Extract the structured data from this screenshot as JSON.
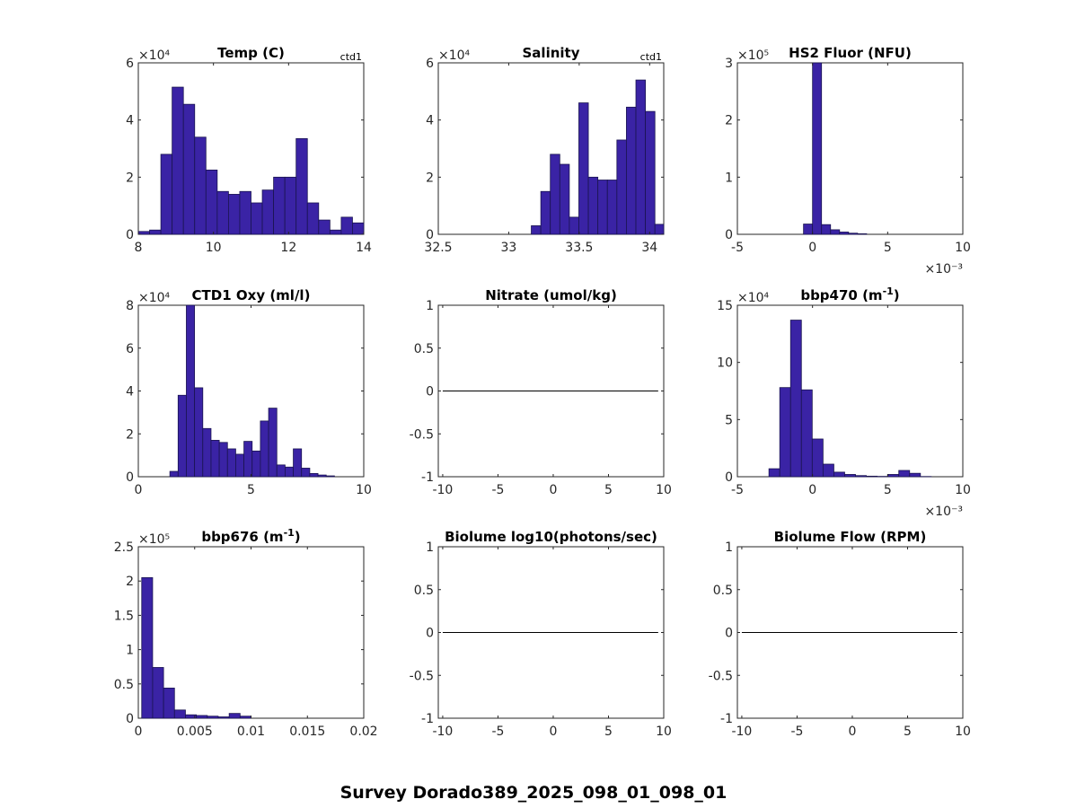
{
  "figure_title": "Survey Dorado389_2025_098_01_098_01",
  "colors": {
    "bar_fill": "#3a23a5",
    "bar_edge": "#1a1450",
    "axis": "#262626",
    "line": "#000000"
  },
  "chart_data": [
    {
      "type": "bar",
      "title": "Temp (C)",
      "tag": "ctd1",
      "multiplier": "×10⁴",
      "multiplier_value": 10000,
      "xlim": [
        8,
        14
      ],
      "ylim": [
        0,
        6
      ],
      "xticks": [
        "8",
        "10",
        "12",
        "14"
      ],
      "xtick_values": [
        8,
        10,
        12,
        14
      ],
      "yticks": [
        "0",
        "2",
        "4",
        "6"
      ],
      "ytick_values": [
        0,
        2,
        4,
        6
      ],
      "bin_start": 8,
      "bin_width": 0.3,
      "values": [
        0.1,
        0.15,
        2.8,
        5.15,
        4.55,
        3.4,
        2.25,
        1.5,
        1.4,
        1.5,
        1.1,
        1.55,
        2.0,
        2.0,
        3.35,
        1.1,
        0.5,
        0.15,
        0.6,
        0.4
      ]
    },
    {
      "type": "bar",
      "title": "Salinity",
      "tag": "ctd1",
      "multiplier": "×10⁴",
      "multiplier_value": 10000,
      "xlim": [
        32.5,
        34.1
      ],
      "ylim": [
        0,
        6
      ],
      "xticks": [
        "32.5",
        "33",
        "33.5",
        "34"
      ],
      "xtick_values": [
        32.5,
        33,
        33.5,
        34
      ],
      "yticks": [
        "0",
        "2",
        "4",
        "6"
      ],
      "ytick_values": [
        0,
        2,
        4,
        6
      ],
      "bin_start": 33.16,
      "bin_width": 0.0675,
      "values": [
        0.3,
        1.5,
        2.8,
        2.45,
        0.6,
        4.6,
        2.0,
        1.9,
        1.9,
        3.3,
        4.45,
        5.4,
        4.3,
        0.35
      ]
    },
    {
      "type": "bar",
      "title": "HS2 Fluor (NFU)",
      "tag": "",
      "multiplier": "×10⁵",
      "multiplier_value": 100000,
      "xlim": [
        -5,
        10
      ],
      "ylim": [
        0,
        3
      ],
      "xticks": [
        "-5",
        "0",
        "5",
        "10"
      ],
      "xtick_values": [
        -5,
        0,
        5,
        10
      ],
      "yticks": [
        "0",
        "1",
        "2",
        "3"
      ],
      "ytick_values": [
        0,
        1,
        2,
        3
      ],
      "x_multiplier": "×10⁻³",
      "bin_start": -0.6,
      "bin_width": 0.6,
      "values": [
        0.18,
        3.0,
        0.17,
        0.08,
        0.04,
        0.02,
        0.01
      ]
    },
    {
      "type": "bar",
      "title": "CTD1 Oxy (ml/l)",
      "tag": "",
      "multiplier": "×10⁴",
      "multiplier_value": 10000,
      "xlim": [
        0,
        10
      ],
      "ylim": [
        0,
        8
      ],
      "xticks": [
        "0",
        "5",
        "10"
      ],
      "xtick_values": [
        0,
        5,
        10
      ],
      "yticks": [
        "0",
        "2",
        "4",
        "6",
        "8"
      ],
      "ytick_values": [
        0,
        2,
        4,
        6,
        8
      ],
      "bin_start": 1.4,
      "bin_width": 0.365,
      "values": [
        0.25,
        3.8,
        8.0,
        4.15,
        2.25,
        1.7,
        1.6,
        1.3,
        1.05,
        1.65,
        1.2,
        2.6,
        3.2,
        0.55,
        0.45,
        1.3,
        0.4,
        0.15,
        0.08,
        0.04
      ]
    },
    {
      "type": "line",
      "title": "Nitrate (umol/kg)",
      "tag": "",
      "multiplier": "",
      "xlim": [
        -10.4,
        10
      ],
      "ylim": [
        -1,
        1
      ],
      "xticks": [
        "-10",
        "-5",
        "0",
        "5",
        "10"
      ],
      "xtick_values": [
        -10,
        -5,
        0,
        5,
        10
      ],
      "yticks": [
        "-1",
        "-0.5",
        "0",
        "0.5",
        "1"
      ],
      "ytick_values": [
        -1,
        -0.5,
        0,
        0.5,
        1
      ],
      "line_x": [
        -10,
        9.5
      ],
      "line_y": [
        0,
        0
      ]
    },
    {
      "type": "bar",
      "title": "bbp470 (m",
      "title_sup": "-1",
      "title_end": ")",
      "tag": "",
      "multiplier": "×10⁴",
      "multiplier_value": 10000,
      "xlim": [
        -5,
        10
      ],
      "ylim": [
        0,
        15
      ],
      "xticks": [
        "-5",
        "0",
        "5",
        "10"
      ],
      "xtick_values": [
        -5,
        0,
        5,
        10
      ],
      "yticks": [
        "0",
        "5",
        "10",
        "15"
      ],
      "ytick_values": [
        0,
        5,
        10,
        15
      ],
      "x_multiplier": "×10⁻³",
      "bin_start": -2.9,
      "bin_width": 0.72,
      "values": [
        0.7,
        7.8,
        13.7,
        7.6,
        3.3,
        1.1,
        0.4,
        0.2,
        0.1,
        0.05,
        0.03,
        0.2,
        0.55,
        0.3,
        0.02
      ]
    },
    {
      "type": "bar",
      "title": "bbp676 (m",
      "title_sup": "-1",
      "title_end": ")",
      "tag": "",
      "multiplier": "×10⁵",
      "multiplier_value": 100000,
      "xlim": [
        0,
        0.02
      ],
      "ylim": [
        0,
        2.5
      ],
      "xticks": [
        "0",
        "0.005",
        "0.01",
        "0.015",
        "0.02"
      ],
      "xtick_values": [
        0,
        0.005,
        0.01,
        0.015,
        0.02
      ],
      "yticks": [
        "0",
        "0.5",
        "1",
        "1.5",
        "2",
        "2.5"
      ],
      "ytick_values": [
        0,
        0.5,
        1,
        1.5,
        2,
        2.5
      ],
      "bin_start": 0.0003,
      "bin_width": 0.00097,
      "values": [
        2.05,
        0.74,
        0.44,
        0.12,
        0.05,
        0.04,
        0.03,
        0.02,
        0.07,
        0.03
      ]
    },
    {
      "type": "line",
      "title": "Biolume log10(photons/sec)",
      "tag": "",
      "multiplier": "",
      "xlim": [
        -10.4,
        10
      ],
      "ylim": [
        -1,
        1
      ],
      "xticks": [
        "-10",
        "-5",
        "0",
        "5",
        "10"
      ],
      "xtick_values": [
        -10,
        -5,
        0,
        5,
        10
      ],
      "yticks": [
        "-1",
        "-0.5",
        "0",
        "0.5",
        "1"
      ],
      "ytick_values": [
        -1,
        -0.5,
        0,
        0.5,
        1
      ],
      "line_x": [
        -10,
        9.5
      ],
      "line_y": [
        0,
        0
      ]
    },
    {
      "type": "line",
      "title": "Biolume Flow (RPM)",
      "tag": "",
      "multiplier": "",
      "xlim": [
        -10.4,
        10
      ],
      "ylim": [
        -1,
        1
      ],
      "xticks": [
        "-10",
        "-5",
        "0",
        "5",
        "10"
      ],
      "xtick_values": [
        -10,
        -5,
        0,
        5,
        10
      ],
      "yticks": [
        "-1",
        "-0.5",
        "0",
        "0.5",
        "1"
      ],
      "ytick_values": [
        -1,
        -0.5,
        0,
        0.5,
        1
      ],
      "line_x": [
        -10,
        9.5
      ],
      "line_y": [
        0,
        0
      ]
    }
  ]
}
